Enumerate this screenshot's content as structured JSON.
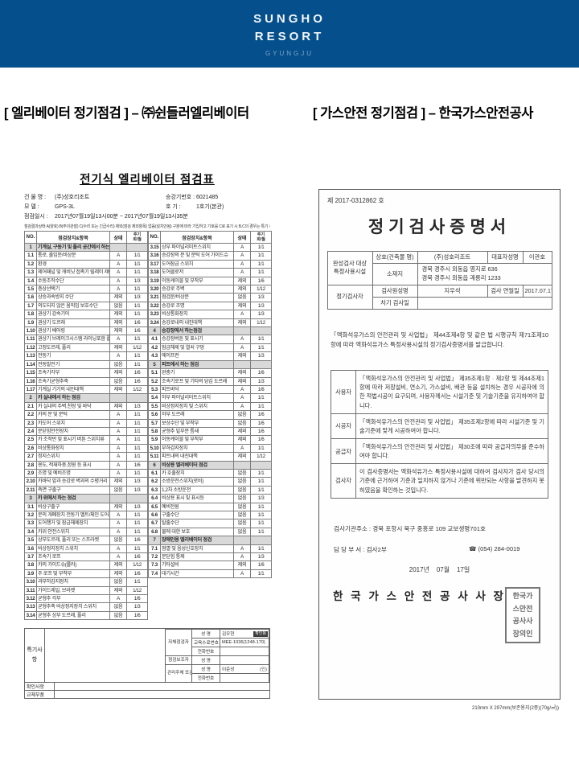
{
  "brand": {
    "line1": "SUNGHO",
    "line2": "RESORT",
    "city": "GYUNGJU"
  },
  "section_titles": {
    "left": "[ 엘리베이터 정기점검 ] – ㈜쉰들러엘리베이터",
    "right": "[ 가스안전 정기점검 ] – 한국가스안전공사"
  },
  "elevator_report": {
    "title": "전기식 엘리베이터 점검표",
    "meta": {
      "building_label": "건 물 명 :",
      "building": "(주)성호리조트",
      "model_label": "모   델 :",
      "model": "GPS-3L",
      "datetime_label": "점검일시 :",
      "datetime": "2017년07월19일13시00분 ~ 2017년07월19일13시35분",
      "lift_no_label": "승강기번호 :",
      "lift_no": "6021485",
      "unit_label": "호       기 :",
      "unit": "1호기(본관)"
    },
    "legend": "점검결과상태 A(양호) B(주의관찰) C(수리 또는 긴급수리) 제외(점검 제외항목) 없음(설치안됨) 구분에 따라 기입하고 기호를 C로 표기 시 B,C의 경우는 특기 사항란에 상세 기재할 것",
    "col_headers": {
      "no": "NO.",
      "item": "점검장치&항목",
      "status": "상태",
      "cycle_top": "주기",
      "cycle_bottom": "회/월"
    },
    "rows_left": [
      [
        "1",
        "기계실, 구동기 및 풀리 공간에서 하는 점검",
        "",
        ""
      ],
      [
        "1.1",
        "통로, 출입문/비상문",
        "A",
        "1/1"
      ],
      [
        "1.2",
        "환경",
        "A",
        "1/1"
      ],
      [
        "1.3",
        "제어패널 및 캐비닛 접촉기 릴레이 제어기판",
        "A",
        "1/1"
      ],
      [
        "1.4",
        "수동조작수단",
        "A",
        "1/3"
      ],
      [
        "1.5",
        "층상선택기",
        "A",
        "1/1"
      ],
      [
        "1.6",
        "상승과속방지 수단",
        "제외",
        "1/3"
      ],
      [
        "1.7",
        "의도되지 않은 움직임 보호수단",
        "없음",
        "1/1"
      ],
      [
        "1.8",
        "권상기 감속기어",
        "제외",
        "1/1"
      ],
      [
        "1.9",
        "권상기 도르래",
        "제외",
        "1/6"
      ],
      [
        "1.10",
        "권상기 베어링",
        "제외",
        "1/6"
      ],
      [
        "1.11",
        "권상기 브레이크시스템 라이닝포함 플런저스프링",
        "A",
        "1/1"
      ],
      [
        "1.12",
        "고정도르래, 풀리",
        "제외",
        "1/12"
      ],
      [
        "1.13",
        "전동기",
        "A",
        "1/1"
      ],
      [
        "1.14",
        "전동발전기",
        "없음",
        "1/1"
      ],
      [
        "1.15",
        "조속기각부",
        "제외",
        "1/6"
      ],
      [
        "1.16",
        "조속기균형추축",
        "없음",
        "1/6"
      ],
      [
        "1.17",
        "기계실 기기의 내진대책",
        "제외",
        "1/12"
      ],
      [
        "2",
        "카 실내에서 하는 점검",
        "",
        ""
      ],
      [
        "2.1",
        "카 실내의 주벽,천장 및 바닥",
        "제외",
        "1/3"
      ],
      [
        "2.2",
        "카의 문 및 문턱",
        "A",
        "1/1"
      ],
      [
        "2.3",
        "카도어 스위치",
        "A",
        "1/1"
      ],
      [
        "2.4",
        "문닫힘안전장치",
        "A",
        "1/1"
      ],
      [
        "2.5",
        "카 조작반 및 표시기 버튼 스위치류",
        "A",
        "1/1"
      ],
      [
        "2.6",
        "비상통화장치",
        "A",
        "1/1"
      ],
      [
        "2.7",
        "정지스위치",
        "A",
        "1/1"
      ],
      [
        "2.8",
        "용도, 적재하중,정원 등 표시",
        "A",
        "1/6"
      ],
      [
        "2.9",
        "조명 및 예비조명",
        "A",
        "1/1"
      ],
      [
        "2.10",
        "카바닥 앞과 승강로 벽과의 수평거리",
        "제외",
        "1/3"
      ],
      [
        "2.11",
        "측면 구출구",
        "없음",
        "1/3"
      ],
      [
        "3",
        "카 위에서 하는 점검",
        "",
        ""
      ],
      [
        "3.1",
        "비상구출구",
        "제외",
        "1/3"
      ],
      [
        "3.2",
        "문의 개폐장치 전동기 벨트/체인 도어기판",
        "A",
        "1/1"
      ],
      [
        "3.3",
        "도어행거 및 잠금해제장치",
        "A",
        "1/1"
      ],
      [
        "3.4",
        "카위 안전스위치",
        "A",
        "1/1"
      ],
      [
        "3.5",
        "상부도르래, 풀리 또는 스프라켓",
        "없음",
        "1/6"
      ],
      [
        "3.6",
        "비상정지장치 스위치",
        "A",
        "1/1"
      ],
      [
        "3.7",
        "조속기 로프",
        "A",
        "1/6"
      ],
      [
        "3.8",
        "카의 가이드슈(롤러)",
        "제외",
        "1/12"
      ],
      [
        "3.9",
        "주 로프 및 부착부",
        "제외",
        "1/6"
      ],
      [
        "3.10",
        "과부하감지장치",
        "없음",
        "1/1"
      ],
      [
        "3.11",
        "가이드레일, 브라켓",
        "제외",
        "1/12"
      ],
      [
        "3.12",
        "균형추 각부",
        "A",
        "1/6"
      ],
      [
        "3.13",
        "균형추축 비상정지장치 스위치",
        "없음",
        "1/3"
      ],
      [
        "3.14",
        "균형추 상부 도르래, 풀리",
        "없음",
        "1/6"
      ]
    ],
    "rows_right": [
      [
        "3.15",
        "상부 파이널리미트스위치",
        "A",
        "1/1"
      ],
      [
        "3.16",
        "승강장의 문 및 문턱 도어 가이드슈",
        "A",
        "1/1"
      ],
      [
        "3.17",
        "도어잠금 스위치",
        "A",
        "1/1"
      ],
      [
        "3.18",
        "도어클로저",
        "A",
        "1/1"
      ],
      [
        "3.19",
        "이동케이블 및 부착부",
        "제외",
        "1/6"
      ],
      [
        "3.20",
        "승강로 주벽",
        "제외",
        "1/12"
      ],
      [
        "3.21",
        "점검문/비상문",
        "없음",
        "1/3"
      ],
      [
        "3.22",
        "승강로 조명",
        "제외",
        "1/3"
      ],
      [
        "3.23",
        "비상통화장치",
        "A",
        "1/3"
      ],
      [
        "3.24",
        "승강로내의 내진대책",
        "제외",
        "1/12"
      ],
      [
        "4",
        "승강장에서 하는점검",
        "",
        ""
      ],
      [
        "4.1",
        "승강장버튼 및 표시기",
        "A",
        "1/1"
      ],
      [
        "4.2",
        "잠금해제 및 열쇠 구멍",
        "A",
        "1/1"
      ],
      [
        "4.3",
        "에이프런",
        "제외",
        "1/3"
      ],
      [
        "5",
        "피트에서 하는 점검",
        "",
        ""
      ],
      [
        "5.1",
        "완충기",
        "제외",
        "1/6"
      ],
      [
        "5.2",
        "조속기로프 및 기타의 당김 도르래",
        "제외",
        "1/3"
      ],
      [
        "5.3",
        "피트바닥",
        "A",
        "1/6"
      ],
      [
        "5.4",
        "하부 파이널리미트스위치",
        "A",
        "1/1"
      ],
      [
        "5.5",
        "비상정지장치 및 스위치",
        "A",
        "1/1"
      ],
      [
        "5.6",
        "하부 도르래",
        "없음",
        "1/6"
      ],
      [
        "5.7",
        "보상수단 및 부착부",
        "없음",
        "1/6"
      ],
      [
        "5.8",
        "균형추 밑부분 틈새",
        "제외",
        "1/6"
      ],
      [
        "5.9",
        "이동케이블 및 부착부",
        "제외",
        "1/6"
      ],
      [
        "5.10",
        "부하감지장치",
        "A",
        "1/1"
      ],
      [
        "5.11",
        "피트내의 내진대책",
        "제외",
        "1/12"
      ],
      [
        "6",
        "비상용 엘리베이터 점검",
        "",
        ""
      ],
      [
        "6.1",
        "카 호출장치",
        "없음",
        "1/1"
      ],
      [
        "6.2",
        "소방운전스위치(로비)",
        "없음",
        "1/1"
      ],
      [
        "6.3",
        "1,2차 소방운전",
        "없음",
        "1/1"
      ],
      [
        "6.4",
        "비상용 표시 및 표시등",
        "없음",
        "1/3"
      ],
      [
        "6.5",
        "예비전원",
        "없음",
        "1/1"
      ],
      [
        "6.6",
        "구출수단",
        "없음",
        "1/1"
      ],
      [
        "6.7",
        "탈출수단",
        "없음",
        "1/1"
      ],
      [
        "6.8",
        "물에 대한 보호",
        "없음",
        "1/1"
      ],
      [
        "7",
        "장애인용 엘리베이터 점검",
        "",
        ""
      ],
      [
        "7.1",
        "점멸 및 음성신호장치",
        "A",
        "1/1"
      ],
      [
        "7.2",
        "문닫힘 통제",
        "A",
        "1/3"
      ],
      [
        "7.3",
        "기타설비",
        "제외",
        "1/6"
      ],
      [
        "7.4",
        "대기시간",
        "A",
        "1/1"
      ]
    ],
    "signature": {
      "notes_label": "특기사항",
      "self_inspector_label": "자체점검자",
      "assistant_label": "점검보조자",
      "manager_label": "관리주체 또는 안전관리자",
      "name_label": "성  명",
      "edu_label": "교육수료번호",
      "phone_label": "전화번호",
      "inspector_name": "김우현",
      "verified_badge": "확인됨",
      "edu_no": "MEE-1036(1248-170)",
      "assistant_name": "",
      "manager_name": "이준성",
      "seal_mark": "(인)",
      "confirm_label": "확인사항",
      "parts_label": "교체부품"
    }
  },
  "gas_certificate": {
    "doc_no": "제 2017-0312862 호",
    "title": "정기검사증명서",
    "info": {
      "target_label": "완성검사 대상 특정사용시설",
      "company_label": "상호(건축물 명)",
      "company": "(주)성호리조트",
      "ceo_label": "대표자성명",
      "ceo": "이관호",
      "addr_label": "소재지",
      "addr_line1": "경북 경주시 외동읍 영지로 636",
      "addr_line2": "경북 경주시 외동읍 괘릉리 1233",
      "inspector_group_label": "정기검사자",
      "inspector_label": "검사원성명",
      "inspector": "지우석",
      "date_label": "검사 연월일",
      "date": "2017.07.17",
      "next_label": "차기 검사일",
      "next": ""
    },
    "intro": "「액화석유가스의 안전관리 및 사업법」 제44조제4항 및 같은 법 시행규칙 제71조제10항에 따라 액화석유가스 특정사용시설의 정기검사증명서를 발급합니다.",
    "obligations": [
      {
        "who": "사용자",
        "text": "「액화석유가스의 안전관리 및 사업법」 제35조제1항 · 제2항 및 제44조제1항에 따라 저장설비, 연소기, 가스설비, 배관 등을 설치하는 경우 시공자에 의한 적법시공이 요구되며, 사용자께서는 시설기준 및 기술기준을 유지하여야 합니다."
      },
      {
        "who": "시공자",
        "text": "「액화석유가스의 안전관리 및 사업법」 제35조제2항에 따라 시설기준 및 기술기준에 맞게 시공하여야 합니다."
      },
      {
        "who": "공급자",
        "text": "「액화석유가스의 안전관리 및 사업법」 제30조에 따라 공급자의무를 준수하여야 합니다."
      },
      {
        "who": "검사자",
        "text": "이 검사증명서는 액화석유가스 특정사용시설에 대하여 검사자가 검사 당시의 기준에 근거하여 기준과 일치하지 않거나 기준에 위반되는 사항을 발견하지 못하였음을 확인하는 것입니다."
      }
    ],
    "agency_address_label": "검사기관주소 :",
    "agency_address": "경북 포항시 북구 중흥로 109 교보생명701호",
    "dept_label": "담 당  부 서 :",
    "dept": "검사2부",
    "phone": "☎ (054) 284-0019",
    "date": "2017년    07월    17일",
    "issuer": "한 국 가 스 안 전 공 사 사 장",
    "seal_lines": [
      "한국가",
      "스안전",
      "공사사",
      "장의인"
    ],
    "footnote": "210mm X 297mm(보존용지(2종)(70g/㎡))"
  }
}
